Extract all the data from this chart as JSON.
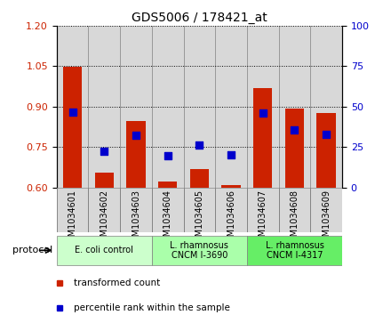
{
  "title": "GDS5006 / 178421_at",
  "samples": [
    "GSM1034601",
    "GSM1034602",
    "GSM1034603",
    "GSM1034604",
    "GSM1034605",
    "GSM1034606",
    "GSM1034607",
    "GSM1034608",
    "GSM1034609"
  ],
  "transformed_count": [
    1.047,
    0.655,
    0.845,
    0.622,
    0.668,
    0.607,
    0.97,
    0.893,
    0.875
  ],
  "percentile_rank_scaled": [
    0.878,
    0.735,
    0.795,
    0.718,
    0.756,
    0.72,
    0.875,
    0.812,
    0.797
  ],
  "ylim_left": [
    0.6,
    1.2
  ],
  "ylim_right": [
    0,
    100
  ],
  "yticks_left": [
    0.6,
    0.75,
    0.9,
    1.05,
    1.2
  ],
  "yticks_right": [
    0,
    25,
    50,
    75,
    100
  ],
  "bar_color": "#cc2200",
  "dot_color": "#0000cc",
  "bar_bottom": 0.6,
  "col_bg_color": "#d8d8d8",
  "protocols": [
    {
      "label": "E. coli control",
      "start": 0,
      "end": 3,
      "color": "#ccffcc"
    },
    {
      "label": "L. rhamnosus\nCNCM I-3690",
      "start": 3,
      "end": 6,
      "color": "#aaffaa"
    },
    {
      "label": "L. rhamnosus\nCNCM I-4317",
      "start": 6,
      "end": 9,
      "color": "#66ee66"
    }
  ],
  "legend_items": [
    {
      "label": "transformed count",
      "color": "#cc2200"
    },
    {
      "label": "percentile rank within the sample",
      "color": "#0000cc"
    }
  ]
}
